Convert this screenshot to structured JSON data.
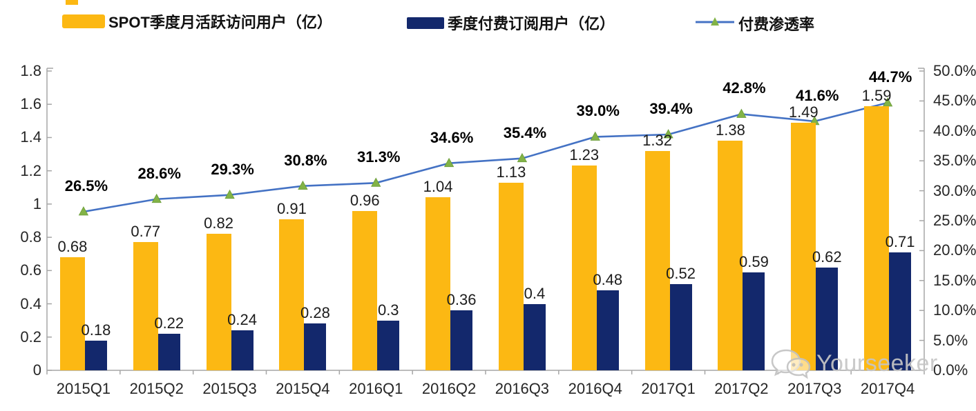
{
  "legend": [
    {
      "label": "SPOT季度月活跃访问用户（亿）",
      "type": "bar",
      "color": "#FCB813"
    },
    {
      "label": "季度付费订阅用户（亿）",
      "type": "bar",
      "color": "#13286C"
    },
    {
      "label": "付费渗透率",
      "type": "line",
      "color": "#4472C4",
      "marker_color": "#82B347"
    }
  ],
  "chart_data": {
    "type": "bar",
    "subtype": "bar+line combo, dual axis",
    "categories": [
      "2015Q1",
      "2015Q2",
      "2015Q3",
      "2015Q4",
      "2016Q1",
      "2016Q2",
      "2016Q3",
      "2016Q4",
      "2017Q1",
      "2017Q2",
      "2017Q3",
      "2017Q4"
    ],
    "series": [
      {
        "name": "SPOT季度月活跃访问用户（亿）",
        "type": "bar",
        "axis": "left",
        "color": "#FCB813",
        "values": [
          0.68,
          0.77,
          0.82,
          0.91,
          0.96,
          1.04,
          1.13,
          1.23,
          1.32,
          1.38,
          1.49,
          1.59
        ],
        "labels": [
          "0.68",
          "0.77",
          "0.82",
          "0.91",
          "0.96",
          "1.04",
          "1.13",
          "1.23",
          "1.32",
          "1.38",
          "1.49",
          "1.59"
        ]
      },
      {
        "name": "季度付费订阅用户（亿）",
        "type": "bar",
        "axis": "left",
        "color": "#13286C",
        "values": [
          0.18,
          0.22,
          0.24,
          0.28,
          0.3,
          0.36,
          0.4,
          0.48,
          0.52,
          0.59,
          0.62,
          0.71
        ],
        "labels": [
          "0.18",
          "0.22",
          "0.24",
          "0.28",
          "0.3",
          "0.36",
          "0.4",
          "0.48",
          "0.52",
          "0.59",
          "0.62",
          "0.71"
        ]
      },
      {
        "name": "付费渗透率",
        "type": "line",
        "axis": "right",
        "color": "#4472C4",
        "marker": "triangle",
        "marker_color": "#82B347",
        "values": [
          26.5,
          28.6,
          29.3,
          30.8,
          31.3,
          34.6,
          35.4,
          39.0,
          39.4,
          42.8,
          41.6,
          44.7
        ],
        "labels": [
          "26.5%",
          "28.6%",
          "29.3%",
          "30.8%",
          "31.3%",
          "34.6%",
          "35.4%",
          "39.0%",
          "39.4%",
          "42.8%",
          "41.6%",
          "44.7%"
        ]
      }
    ],
    "left_axis": {
      "min": 0,
      "max": 1.8,
      "ticks": [
        "0",
        "0.2",
        "0.4",
        "0.6",
        "0.8",
        "1",
        "1.2",
        "1.4",
        "1.6",
        "1.8"
      ]
    },
    "right_axis": {
      "min": 0,
      "max": 50,
      "ticks": [
        "0.0%",
        "5.0%",
        "10.0%",
        "15.0%",
        "20.0%",
        "25.0%",
        "30.0%",
        "35.0%",
        "40.0%",
        "45.0%",
        "50.0%"
      ]
    },
    "grid": false,
    "legend_position": "top",
    "title": "",
    "xlabel": "",
    "ylabel": ""
  },
  "watermark": {
    "text": "Yourseeker",
    "icon": "wechat-icon"
  },
  "colors": {
    "bar_mau": "#FCB813",
    "bar_subs": "#13286C",
    "line": "#4472C4",
    "marker": "#82B347",
    "axis": "#A6A6A6",
    "watermark": "#C6C6C6"
  }
}
